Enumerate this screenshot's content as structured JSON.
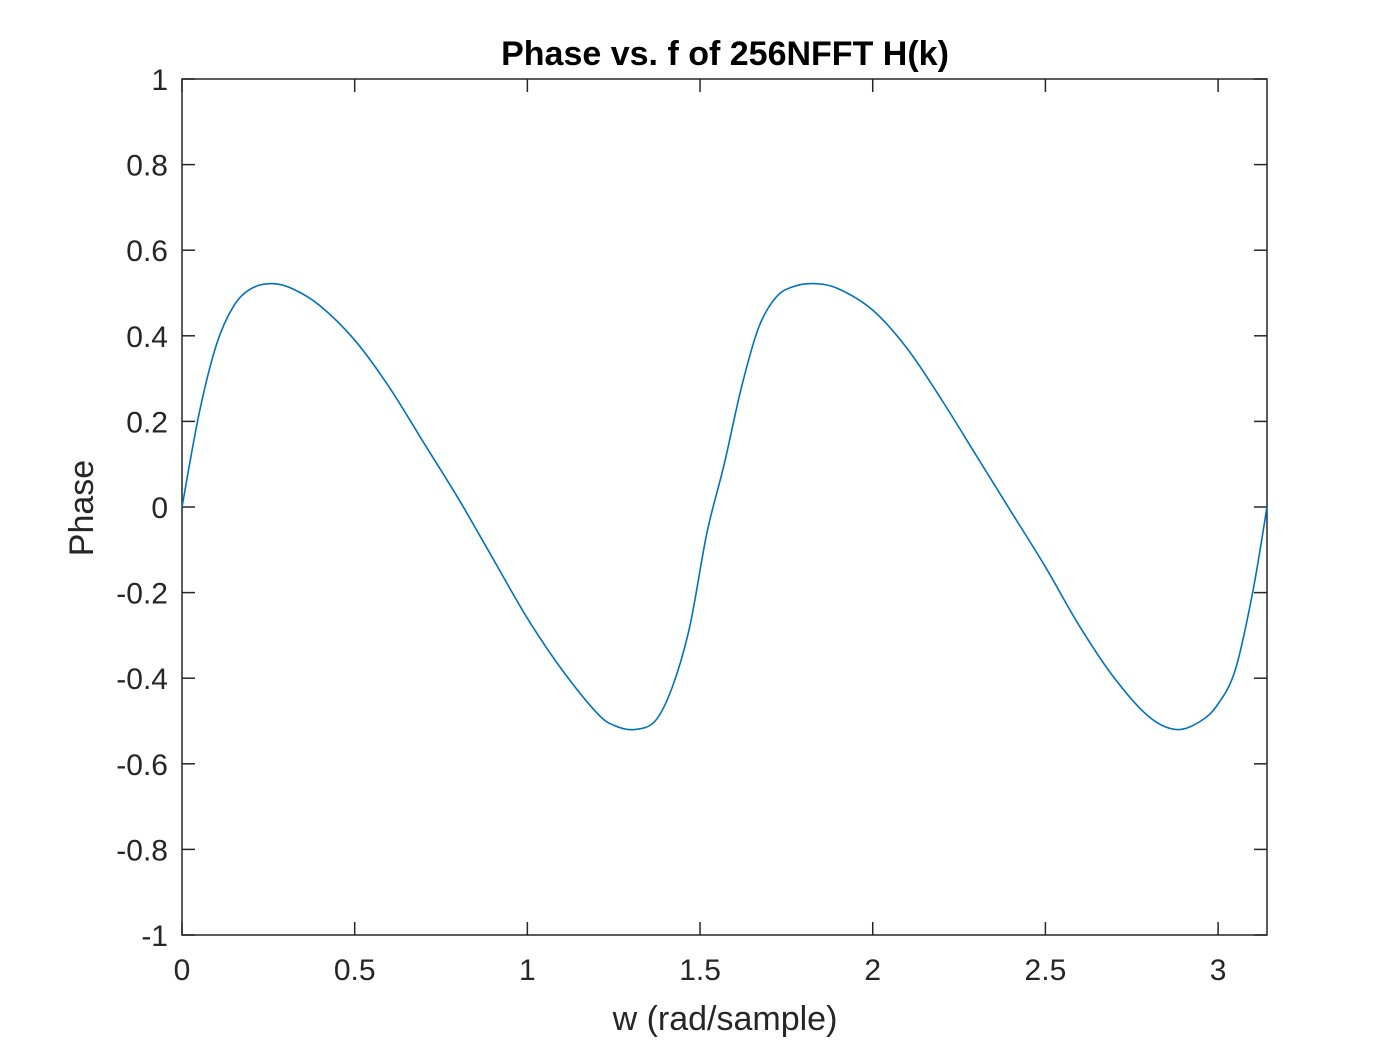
{
  "chart_data": {
    "type": "line",
    "title": "Phase vs. f of 256NFFT H(k)",
    "xlabel": "w (rad/sample)",
    "ylabel": "Phase",
    "xlim": [
      0,
      3.1416
    ],
    "ylim": [
      -1,
      1
    ],
    "xticks": [
      0,
      0.5,
      1,
      1.5,
      2,
      2.5,
      3
    ],
    "xtick_labels": [
      "0",
      "0.5",
      "1",
      "1.5",
      "2",
      "2.5",
      "3"
    ],
    "yticks": [
      -1,
      -0.8,
      -0.6,
      -0.4,
      -0.2,
      0,
      0.2,
      0.4,
      0.6,
      0.8,
      1
    ],
    "ytick_labels": [
      "-1",
      "-0.8",
      "-0.6",
      "-0.4",
      "-0.2",
      "0",
      "0.2",
      "0.4",
      "0.6",
      "0.8",
      "1"
    ],
    "grid": false,
    "series": [
      {
        "color": "#0072BD",
        "x": [
          0,
          0.05,
          0.1,
          0.15,
          0.2,
          0.26,
          0.32,
          0.4,
          0.5,
          0.6,
          0.7,
          0.8,
          0.9,
          1.0,
          1.1,
          1.2,
          1.25,
          1.31,
          1.37,
          1.42,
          1.47,
          1.52,
          1.57,
          1.62,
          1.67,
          1.72,
          1.77,
          1.83,
          1.9,
          2.0,
          2.1,
          2.2,
          2.3,
          2.4,
          2.5,
          2.6,
          2.7,
          2.8,
          2.88,
          2.95,
          3.0,
          3.05,
          3.1,
          3.1416
        ],
        "y": [
          0,
          0.22,
          0.38,
          0.47,
          0.51,
          0.522,
          0.51,
          0.47,
          0.39,
          0.28,
          0.15,
          0.02,
          -0.12,
          -0.26,
          -0.38,
          -0.48,
          -0.51,
          -0.52,
          -0.5,
          -0.42,
          -0.28,
          -0.06,
          0.1,
          0.28,
          0.42,
          0.49,
          0.515,
          0.522,
          0.51,
          0.46,
          0.37,
          0.25,
          0.12,
          -0.01,
          -0.14,
          -0.28,
          -0.4,
          -0.49,
          -0.52,
          -0.5,
          -0.46,
          -0.38,
          -0.2,
          0
        ]
      }
    ]
  }
}
